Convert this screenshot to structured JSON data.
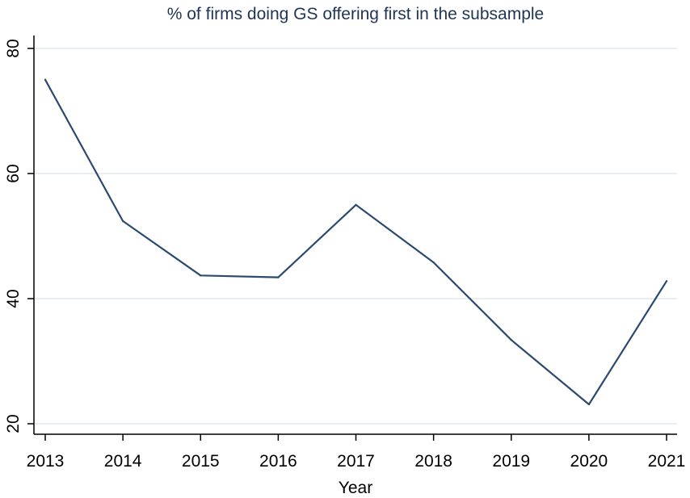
{
  "chart_data": {
    "type": "line",
    "title": "% of firms doing GS offering first in the subsample",
    "xlabel": "Year",
    "ylabel": "",
    "x": [
      2013,
      2014,
      2015,
      2016,
      2017,
      2018,
      2019,
      2020,
      2021
    ],
    "x_tick_labels": [
      "2013",
      "2014",
      "2015",
      "2016",
      "2017",
      "2018",
      "2019",
      "2020",
      "2021"
    ],
    "series": [
      {
        "name": "% of firms doing GS offering first",
        "values": [
          75,
          52.4,
          43.7,
          43.4,
          55,
          45.8,
          33.4,
          23.1,
          42.8
        ]
      }
    ],
    "ylim": [
      20,
      80
    ],
    "y_ticks": [
      20,
      40,
      60,
      80
    ],
    "y_tick_labels": [
      "20",
      "40",
      "60",
      "80"
    ],
    "grid": true,
    "colors": {
      "line": "#2b4a6e",
      "title": "#1f3555",
      "grid": "#e8eef2",
      "axis": "#000000"
    }
  }
}
